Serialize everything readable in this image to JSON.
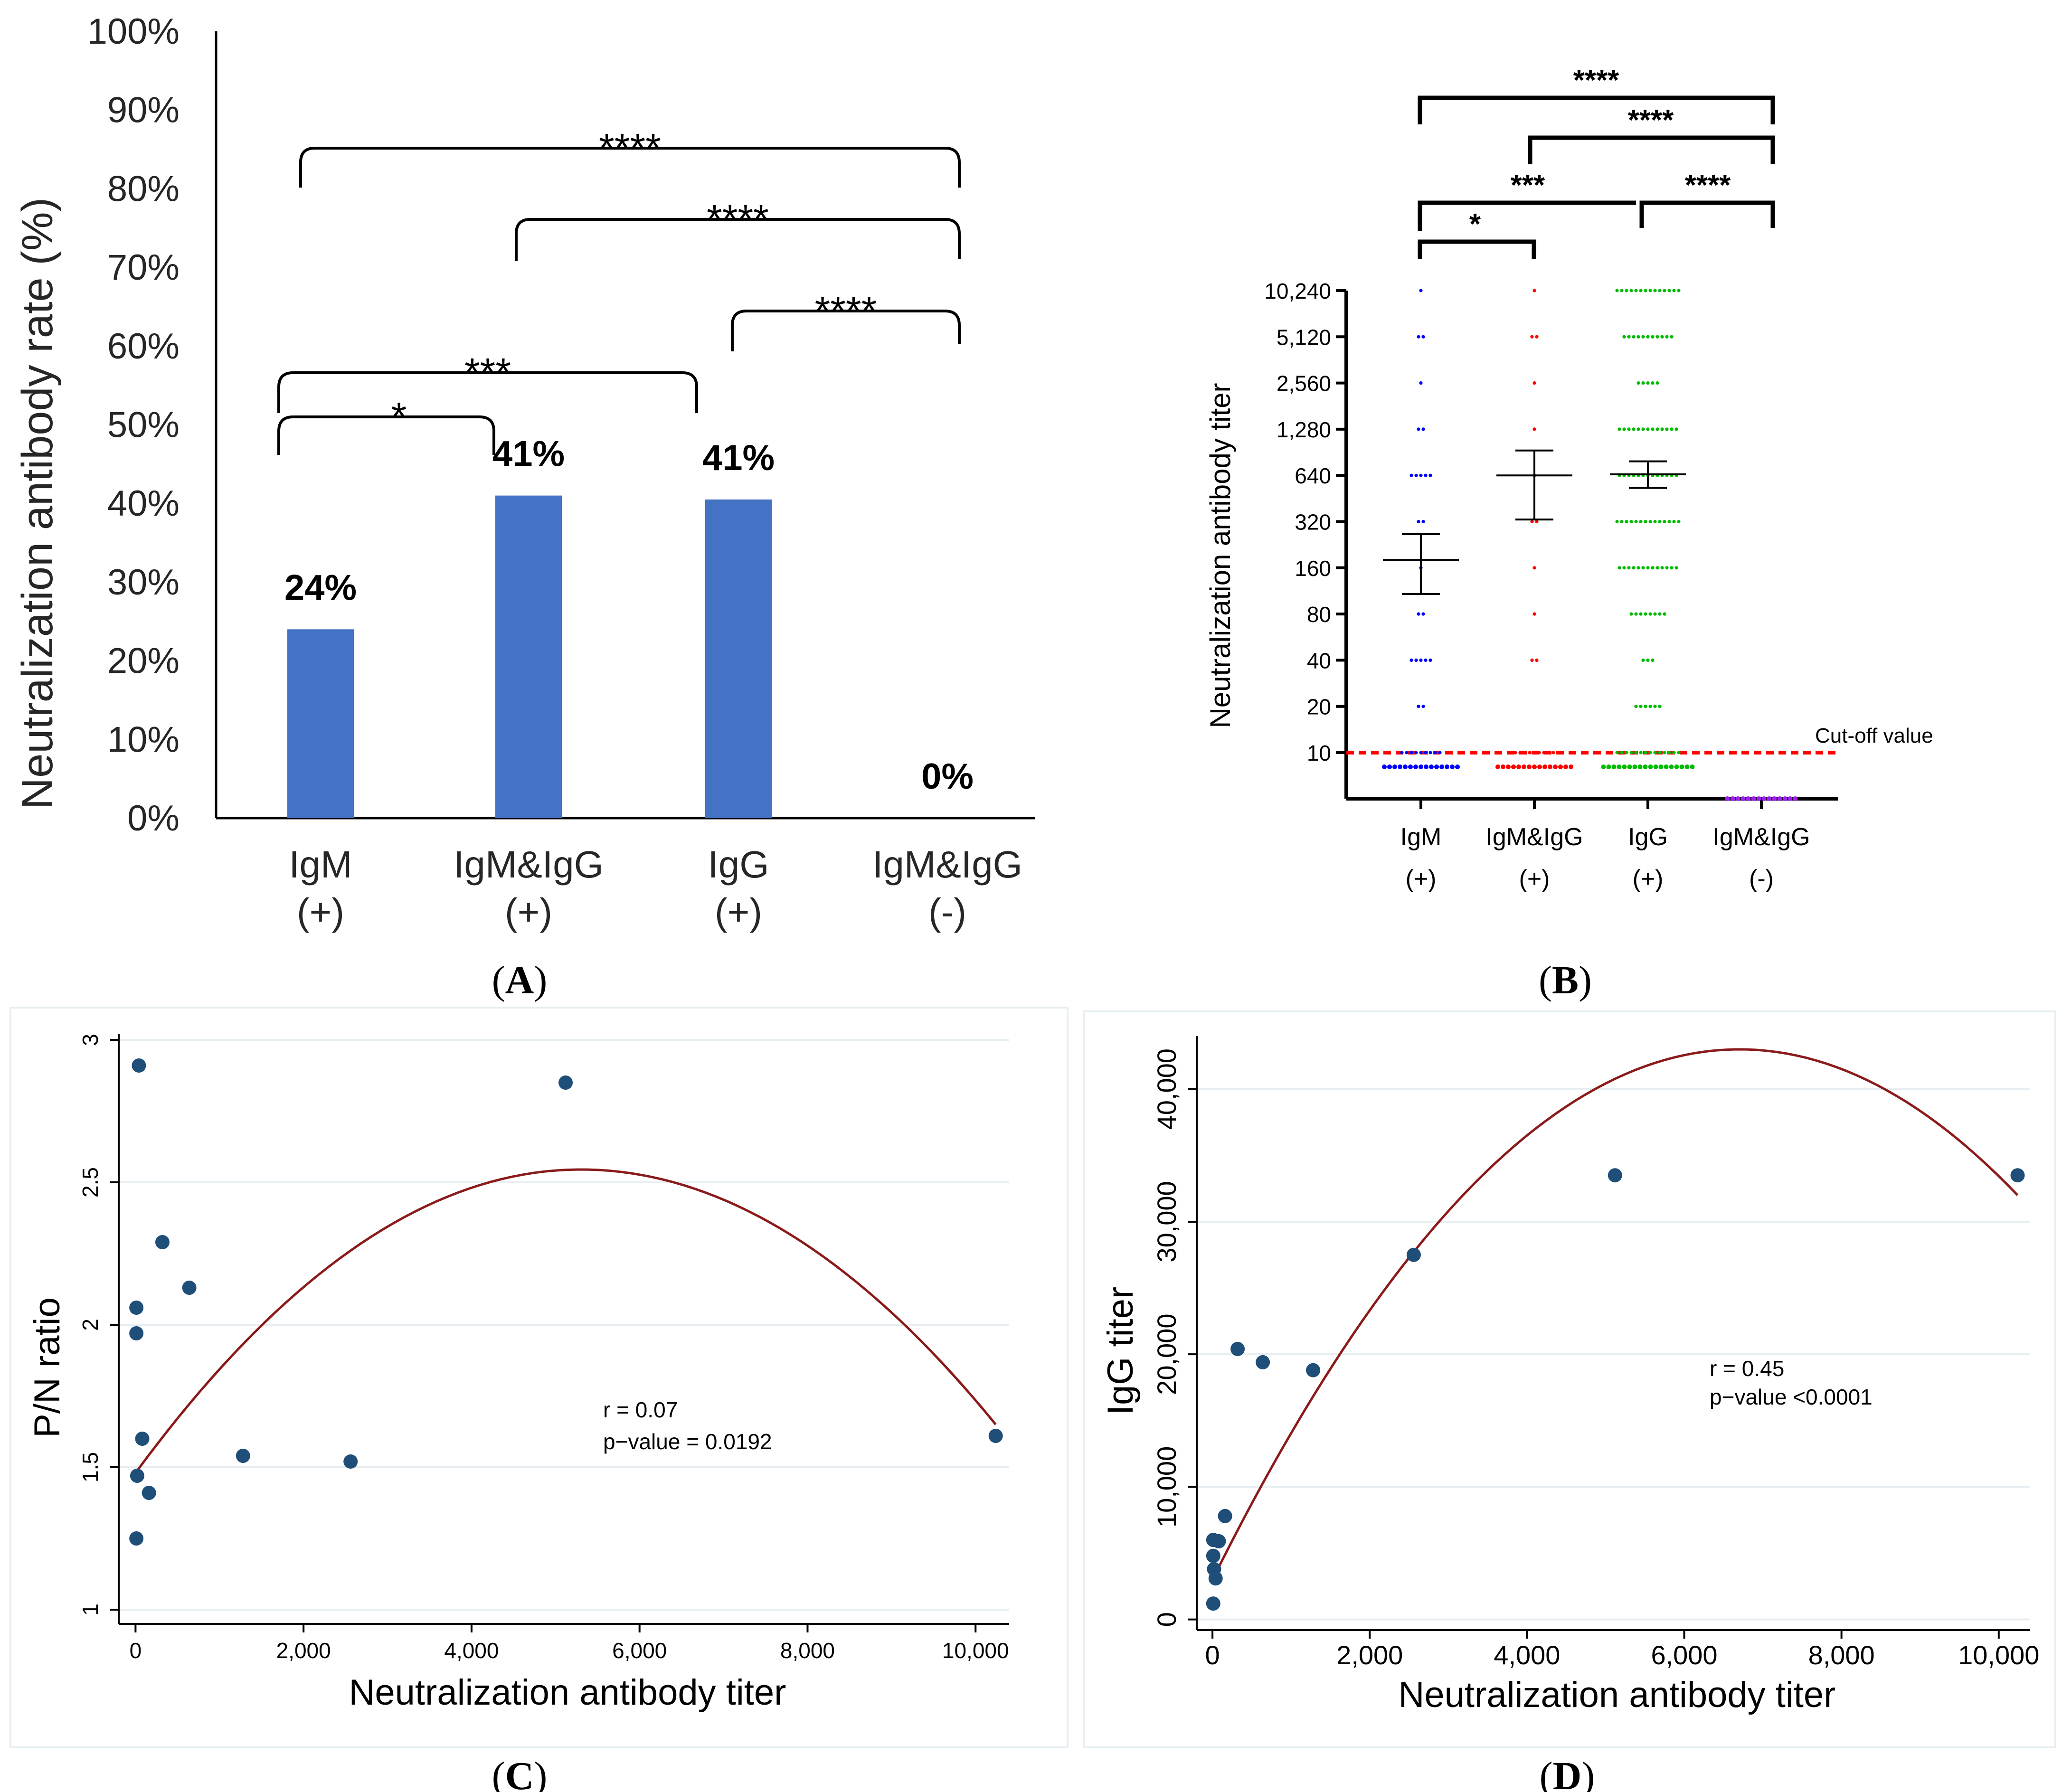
{
  "chart_data": [
    {
      "panel": "A",
      "type": "bar",
      "caption": "(A)",
      "ylabel": "Neutralization antibody rate (%)",
      "ylim": [
        0,
        100
      ],
      "yticks": [
        "0%",
        "10%",
        "20%",
        "30%",
        "40%",
        "50%",
        "60%",
        "70%",
        "80%",
        "90%",
        "100%"
      ],
      "categories": [
        {
          "line1": "IgM",
          "line2": "(+)"
        },
        {
          "line1": "IgM&IgG",
          "line2": "(+)"
        },
        {
          "line1": "IgG",
          "line2": "(+)"
        },
        {
          "line1": "IgM&IgG",
          "line2": "(-)"
        }
      ],
      "values": [
        24,
        41,
        40.5,
        0
      ],
      "value_labels": [
        "24%",
        "41%",
        "41%",
        "0%"
      ],
      "bar_color": "#4472c4",
      "significance": [
        {
          "from": 0,
          "to": 3,
          "label": "****"
        },
        {
          "from": 1,
          "to": 3,
          "label": "****"
        },
        {
          "from": 2,
          "to": 3,
          "label": "****"
        },
        {
          "from": 0,
          "to": 2,
          "label": "***"
        },
        {
          "from": 0,
          "to": 1,
          "label": "*"
        }
      ]
    },
    {
      "panel": "B",
      "type": "scatter",
      "caption": "(B)",
      "ylabel": "Neutralization antibody titer",
      "yscale": "log2",
      "yticks": [
        "10",
        "20",
        "40",
        "80",
        "160",
        "320",
        "640",
        "1,280",
        "2,560",
        "5,120",
        "10,240"
      ],
      "cutoff_label": "Cut-off value",
      "cutoff_value": 10,
      "cutoff_color": "#ff0000",
      "groups": [
        {
          "line1": "IgM",
          "line2": "(+)",
          "color": "#0000ff",
          "mean": 180,
          "ci": [
            108,
            265
          ],
          "counts": {
            "10": 9,
            "20": 2,
            "40": 5,
            "80": 2,
            "160": 1,
            "320": 2,
            "640": 5,
            "1280": 2,
            "2560": 1,
            "5120": 2,
            "10240": 1
          },
          "below_cutoff_count": 15
        },
        {
          "line1": "IgM&IgG",
          "line2": "(+)",
          "color": "#ff0000",
          "mean": 640,
          "ci": [
            330,
            930
          ],
          "counts": {
            "10": 11,
            "40": 2,
            "80": 1,
            "160": 1,
            "320": 2,
            "640": 1,
            "1280": 1,
            "2560": 1,
            "5120": 2,
            "10240": 1
          },
          "below_cutoff_count": 15
        },
        {
          "line1": "IgG",
          "line2": "(+)",
          "color": "#00bb00",
          "mean": 650,
          "ci": [
            530,
            790
          ],
          "counts": {
            "10": 14,
            "20": 6,
            "40": 3,
            "80": 8,
            "160": 13,
            "320": 14,
            "640": 13,
            "1280": 13,
            "2560": 5,
            "5120": 11,
            "10240": 14
          },
          "below_cutoff_count": 18
        },
        {
          "line1": "IgM&IgG",
          "line2": "(-)",
          "color": "#a020f0",
          "counts": {},
          "below_cutoff_count": 14
        }
      ],
      "significance": [
        {
          "from": 0,
          "to": 3,
          "label": "****"
        },
        {
          "from": 1,
          "to": 3,
          "label": "****"
        },
        {
          "from": 0,
          "to": 2,
          "label": "***"
        },
        {
          "from": 2,
          "to": 3,
          "label": "****"
        },
        {
          "from": 0,
          "to": 1,
          "label": "*"
        }
      ]
    },
    {
      "panel": "C",
      "type": "scatter",
      "caption": "(C)",
      "xlabel": "Neutralization antibody titer",
      "ylabel": "P/N ratio",
      "xlim": [
        -200,
        10400
      ],
      "ylim": [
        0.95,
        3.02
      ],
      "xticks": [
        0,
        2000,
        4000,
        6000,
        8000,
        10000
      ],
      "xtick_labels": [
        "0",
        "2,000",
        "4,000",
        "6,000",
        "8,000",
        "10,000"
      ],
      "yticks": [
        1,
        1.5,
        2,
        2.5,
        3
      ],
      "ytick_labels": [
        "1",
        "1.5",
        "2",
        "2.5",
        "3"
      ],
      "point_color": "#1f4e79",
      "fit_color": "#8b1a1a",
      "points": [
        {
          "x": 10,
          "y": 1.25
        },
        {
          "x": 20,
          "y": 1.47
        },
        {
          "x": 10,
          "y": 1.97
        },
        {
          "x": 10,
          "y": 2.06
        },
        {
          "x": 40,
          "y": 2.91
        },
        {
          "x": 80,
          "y": 1.6
        },
        {
          "x": 160,
          "y": 1.41
        },
        {
          "x": 320,
          "y": 2.29
        },
        {
          "x": 640,
          "y": 2.13
        },
        {
          "x": 1280,
          "y": 1.54
        },
        {
          "x": 2560,
          "y": 1.52
        },
        {
          "x": 5120,
          "y": 2.85
        },
        {
          "x": 10240,
          "y": 1.61
        }
      ],
      "fit": {
        "x_start": 0,
        "y_start": 1.48,
        "x_vertex": 5300,
        "y_vertex": 2.545,
        "x_end": 10240,
        "y_end": 1.65
      },
      "annotation": [
        "r = 0.07",
        "p−value = 0.0192"
      ]
    },
    {
      "panel": "D",
      "type": "scatter",
      "caption": "(D)",
      "xlabel": "Neutralization antibody titer",
      "ylabel": "IgG titer",
      "xlim": [
        -200,
        10400
      ],
      "ylim": [
        -800,
        44000
      ],
      "xticks": [
        0,
        2000,
        4000,
        6000,
        8000,
        10000
      ],
      "xtick_labels": [
        "0",
        "2,000",
        "4,000",
        "6,000",
        "8,000",
        "10,000"
      ],
      "yticks": [
        0,
        10000,
        20000,
        30000,
        40000
      ],
      "ytick_labels": [
        "0",
        "10,000",
        "20,000",
        "30,000",
        "40,000"
      ],
      "point_color": "#1f4e79",
      "fit_color": "#8b1a1a",
      "points": [
        {
          "x": 10,
          "y": 1200
        },
        {
          "x": 20,
          "y": 3800
        },
        {
          "x": 10,
          "y": 4800
        },
        {
          "x": 10,
          "y": 6000
        },
        {
          "x": 40,
          "y": 3100
        },
        {
          "x": 80,
          "y": 5900
        },
        {
          "x": 160,
          "y": 7800
        },
        {
          "x": 320,
          "y": 20400
        },
        {
          "x": 640,
          "y": 19400
        },
        {
          "x": 1280,
          "y": 18800
        },
        {
          "x": 2560,
          "y": 27500
        },
        {
          "x": 5120,
          "y": 33500
        },
        {
          "x": 10240,
          "y": 33500
        }
      ],
      "fit": {
        "x_start": 0,
        "y_start": 3000,
        "x_vertex": 6700,
        "y_vertex": 43000,
        "x_end": 10240,
        "y_end": 32000
      },
      "annotation": [
        "r = 0.45",
        "p−value <0.0001"
      ]
    }
  ]
}
